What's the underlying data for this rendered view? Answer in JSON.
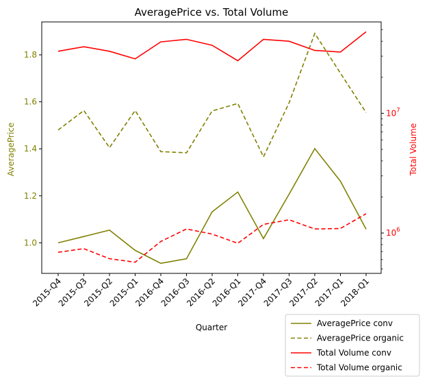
{
  "chart_data": {
    "type": "line",
    "title": "AveragePrice vs. Total Volume",
    "xlabel": "Quarter",
    "ylabel_left": "AveragePrice",
    "ylabel_right": "Total Volume",
    "categories": [
      "2015-Q4",
      "2015-Q3",
      "2015-Q2",
      "2015-Q1",
      "2016-Q4",
      "2016-Q3",
      "2016-Q2",
      "2016-Q1",
      "2017-Q4",
      "2017-Q3",
      "2017-Q2",
      "2017-Q1",
      "2018-Q1"
    ],
    "left_axis": {
      "ylim": [
        0.87,
        1.94
      ],
      "ticks": [
        1.0,
        1.2,
        1.4,
        1.6,
        1.8
      ],
      "tick_labels": [
        "1.0",
        "1.2",
        "1.4",
        "1.6",
        "1.8"
      ],
      "color": "#808000"
    },
    "right_axis": {
      "scale": "log",
      "ylim": [
        460000,
        58000000
      ],
      "major_ticks": [
        1000000,
        10000000
      ],
      "major_tick_labels": [
        "10",
        "10"
      ],
      "major_tick_exponents": [
        "6",
        "7"
      ],
      "color": "#ff0000"
    },
    "series": [
      {
        "name": "AveragePrice conv",
        "axis": "left",
        "color": "#808000",
        "dash": "solid",
        "values": [
          1.0,
          1.027,
          1.054,
          0.968,
          0.913,
          0.932,
          1.132,
          1.216,
          1.018,
          1.207,
          1.401,
          1.262,
          1.058
        ]
      },
      {
        "name": "AveragePrice organic",
        "axis": "left",
        "color": "#808000",
        "dash": "dashed",
        "values": [
          1.48,
          1.563,
          1.405,
          1.563,
          1.388,
          1.383,
          1.561,
          1.593,
          1.366,
          1.596,
          1.891,
          1.722,
          1.554
        ]
      },
      {
        "name": "Total Volume conv",
        "axis": "right",
        "color": "#ff0000",
        "dash": "solid",
        "values": [
          33000000,
          36000000,
          33000000,
          28500000,
          39500000,
          41500000,
          37000000,
          27500000,
          41500000,
          40000000,
          33500000,
          32500000,
          48000000
        ]
      },
      {
        "name": "Total Volume organic",
        "axis": "right",
        "color": "#ff0000",
        "dash": "dashed",
        "values": [
          690000,
          740000,
          610000,
          570000,
          850000,
          1080000,
          980000,
          820000,
          1180000,
          1290000,
          1080000,
          1090000,
          1450000
        ]
      }
    ],
    "grid": false,
    "legend_position": "lower-right-outside"
  }
}
